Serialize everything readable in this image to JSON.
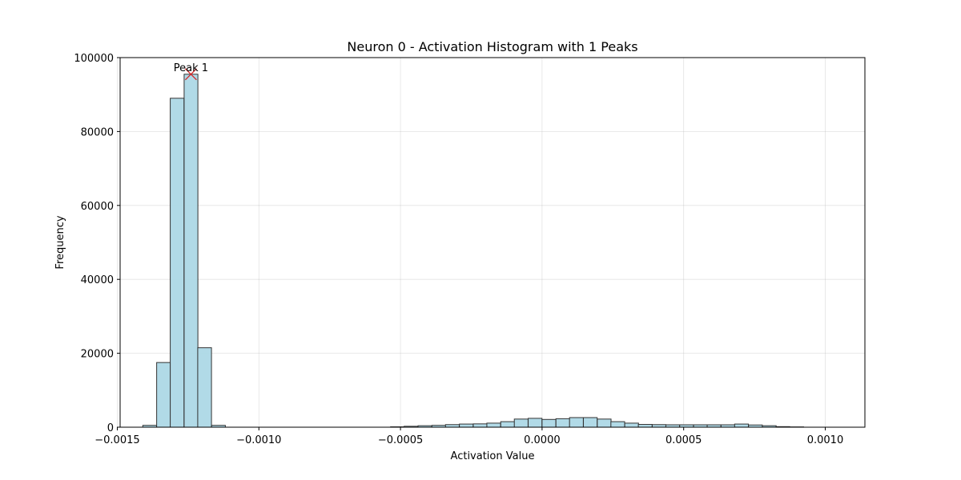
{
  "chart_data": {
    "type": "bar",
    "title": "Neuron 0 - Activation Histogram with 1 Peaks",
    "xlabel": "Activation Value",
    "ylabel": "Frequency",
    "xlim": [
      -0.00149,
      0.00114
    ],
    "ylim": [
      0,
      100000
    ],
    "x_ticks": [
      -0.0015,
      -0.001,
      -0.0005,
      0.0,
      0.0005,
      0.001
    ],
    "x_tick_labels": [
      "−0.0015",
      "−0.0010",
      "−0.0005",
      "0.0000",
      "0.0005",
      "0.0010"
    ],
    "y_ticks": [
      0,
      20000,
      40000,
      60000,
      80000,
      100000
    ],
    "y_tick_labels": [
      "0",
      "20000",
      "40000",
      "60000",
      "80000",
      "100000"
    ],
    "grid": true,
    "bin_width": 4.86e-05,
    "bins": [
      {
        "x0": -0.00141,
        "count": 500
      },
      {
        "x0": -0.001361,
        "count": 17500
      },
      {
        "x0": -0.001313,
        "count": 89000
      },
      {
        "x0": -0.001264,
        "count": 95500
      },
      {
        "x0": -0.001216,
        "count": 21500
      },
      {
        "x0": -0.001167,
        "count": 500
      },
      {
        "x0": -0.001118,
        "count": 0
      },
      {
        "x0": -0.00107,
        "count": 0
      },
      {
        "x0": -0.001021,
        "count": 0
      },
      {
        "x0": -0.000973,
        "count": 0
      },
      {
        "x0": -0.000924,
        "count": 0
      },
      {
        "x0": -0.000875,
        "count": 0
      },
      {
        "x0": -0.000827,
        "count": 0
      },
      {
        "x0": -0.000778,
        "count": 0
      },
      {
        "x0": -0.00073,
        "count": 0
      },
      {
        "x0": -0.000681,
        "count": 0
      },
      {
        "x0": -0.000632,
        "count": 0
      },
      {
        "x0": -0.000584,
        "count": 0
      },
      {
        "x0": -0.000535,
        "count": 100
      },
      {
        "x0": -0.000487,
        "count": 250
      },
      {
        "x0": -0.000438,
        "count": 400
      },
      {
        "x0": -0.000389,
        "count": 500
      },
      {
        "x0": -0.000341,
        "count": 700
      },
      {
        "x0": -0.000292,
        "count": 850
      },
      {
        "x0": -0.000243,
        "count": 900
      },
      {
        "x0": -0.000195,
        "count": 1100
      },
      {
        "x0": -0.000146,
        "count": 1500
      },
      {
        "x0": -9.8e-05,
        "count": 2200
      },
      {
        "x0": -4.9e-05,
        "count": 2400
      },
      {
        "x0": 0.0,
        "count": 2100
      },
      {
        "x0": 4.9e-05,
        "count": 2300
      },
      {
        "x0": 9.7e-05,
        "count": 2600
      },
      {
        "x0": 0.000146,
        "count": 2600
      },
      {
        "x0": 0.000195,
        "count": 2200
      },
      {
        "x0": 0.000243,
        "count": 1500
      },
      {
        "x0": 0.000292,
        "count": 1100
      },
      {
        "x0": 0.00034,
        "count": 750
      },
      {
        "x0": 0.000389,
        "count": 700
      },
      {
        "x0": 0.000437,
        "count": 650
      },
      {
        "x0": 0.000486,
        "count": 650
      },
      {
        "x0": 0.000535,
        "count": 650
      },
      {
        "x0": 0.000583,
        "count": 650
      },
      {
        "x0": 0.000632,
        "count": 650
      },
      {
        "x0": 0.00068,
        "count": 850
      },
      {
        "x0": 0.000729,
        "count": 600
      },
      {
        "x0": 0.000778,
        "count": 400
      },
      {
        "x0": 0.000826,
        "count": 150
      },
      {
        "x0": 0.000875,
        "count": 80
      }
    ],
    "bar_color": "#add8e6",
    "bar_edge_color": "#333333",
    "peaks": [
      {
        "label": "Peak 1",
        "x": -0.00124,
        "y": 95500,
        "marker": "x",
        "color": "#d62728"
      }
    ]
  }
}
